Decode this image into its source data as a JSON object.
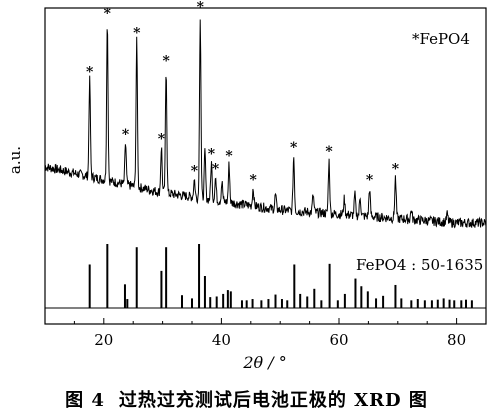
{
  "figure": {
    "caption_number": "图 4",
    "caption_text": "过热过充测试后电池正极的 XRD 图"
  },
  "chart_data": {
    "type": "line",
    "xlabel": "2θ / °",
    "ylabel": "a.u.",
    "xlim": [
      10,
      85
    ],
    "x_ticks": [
      20,
      40,
      60,
      80
    ],
    "legend_label": "*FePO4",
    "reference_label": "FePO4 : 50-1635",
    "marker_symbol": "*",
    "grid": false,
    "series": [
      {
        "name": "*FePO4",
        "baseline": [
          [
            10,
            0.33
          ],
          [
            15,
            0.3
          ],
          [
            20,
            0.27
          ],
          [
            25,
            0.24
          ],
          [
            30,
            0.21
          ],
          [
            35,
            0.19
          ],
          [
            40,
            0.17
          ],
          [
            45,
            0.15
          ],
          [
            50,
            0.13
          ],
          [
            55,
            0.12
          ],
          [
            60,
            0.11
          ],
          [
            65,
            0.1
          ],
          [
            70,
            0.09
          ],
          [
            75,
            0.08
          ],
          [
            80,
            0.07
          ],
          [
            85,
            0.07
          ]
        ],
        "peaks": [
          {
            "x": 17.6,
            "y": 0.73,
            "marked": true
          },
          {
            "x": 20.6,
            "y": 1.0,
            "marked": true
          },
          {
            "x": 23.7,
            "y": 0.44,
            "marked": true
          },
          {
            "x": 25.6,
            "y": 0.91,
            "marked": true
          },
          {
            "x": 29.8,
            "y": 0.42,
            "marked": true
          },
          {
            "x": 30.6,
            "y": 0.78,
            "marked": true
          },
          {
            "x": 35.4,
            "y": 0.27,
            "marked": true
          },
          {
            "x": 36.4,
            "y": 1.03,
            "marked": true
          },
          {
            "x": 37.2,
            "y": 0.4,
            "marked": false
          },
          {
            "x": 38.3,
            "y": 0.35,
            "marked": true
          },
          {
            "x": 39.0,
            "y": 0.28,
            "marked": true
          },
          {
            "x": 40.1,
            "y": 0.26,
            "marked": false
          },
          {
            "x": 41.3,
            "y": 0.34,
            "marked": true
          },
          {
            "x": 45.4,
            "y": 0.23,
            "marked": true
          },
          {
            "x": 49.2,
            "y": 0.2,
            "marked": false
          },
          {
            "x": 52.3,
            "y": 0.38,
            "marked": true
          },
          {
            "x": 55.6,
            "y": 0.2,
            "marked": false
          },
          {
            "x": 58.3,
            "y": 0.36,
            "marked": true
          },
          {
            "x": 60.9,
            "y": 0.18,
            "marked": false
          },
          {
            "x": 62.7,
            "y": 0.2,
            "marked": false
          },
          {
            "x": 63.6,
            "y": 0.19,
            "marked": false
          },
          {
            "x": 65.2,
            "y": 0.23,
            "marked": true
          },
          {
            "x": 69.6,
            "y": 0.28,
            "marked": true
          },
          {
            "x": 72.3,
            "y": 0.13,
            "marked": false
          },
          {
            "x": 78.4,
            "y": 0.11,
            "marked": false
          }
        ]
      }
    ],
    "reference_lines": [
      {
        "x": 17.6,
        "h": 0.68
      },
      {
        "x": 20.6,
        "h": 1.0
      },
      {
        "x": 23.6,
        "h": 0.37
      },
      {
        "x": 24.0,
        "h": 0.14
      },
      {
        "x": 25.6,
        "h": 0.95
      },
      {
        "x": 29.8,
        "h": 0.58
      },
      {
        "x": 30.6,
        "h": 0.95
      },
      {
        "x": 33.3,
        "h": 0.2
      },
      {
        "x": 35.0,
        "h": 0.15
      },
      {
        "x": 36.2,
        "h": 1.0
      },
      {
        "x": 37.2,
        "h": 0.5
      },
      {
        "x": 38.1,
        "h": 0.17
      },
      {
        "x": 39.2,
        "h": 0.18
      },
      {
        "x": 40.3,
        "h": 0.22
      },
      {
        "x": 41.1,
        "h": 0.28
      },
      {
        "x": 41.6,
        "h": 0.26
      },
      {
        "x": 43.5,
        "h": 0.12
      },
      {
        "x": 44.3,
        "h": 0.12
      },
      {
        "x": 45.3,
        "h": 0.14
      },
      {
        "x": 46.8,
        "h": 0.12
      },
      {
        "x": 48.0,
        "h": 0.14
      },
      {
        "x": 49.2,
        "h": 0.21
      },
      {
        "x": 50.3,
        "h": 0.14
      },
      {
        "x": 51.2,
        "h": 0.12
      },
      {
        "x": 52.4,
        "h": 0.68
      },
      {
        "x": 53.4,
        "h": 0.22
      },
      {
        "x": 54.6,
        "h": 0.18
      },
      {
        "x": 55.8,
        "h": 0.3
      },
      {
        "x": 57.0,
        "h": 0.12
      },
      {
        "x": 58.4,
        "h": 0.69
      },
      {
        "x": 59.8,
        "h": 0.12
      },
      {
        "x": 61.0,
        "h": 0.22
      },
      {
        "x": 62.8,
        "h": 0.46
      },
      {
        "x": 63.8,
        "h": 0.34
      },
      {
        "x": 64.9,
        "h": 0.26
      },
      {
        "x": 66.3,
        "h": 0.15
      },
      {
        "x": 67.5,
        "h": 0.19
      },
      {
        "x": 69.6,
        "h": 0.36
      },
      {
        "x": 70.6,
        "h": 0.15
      },
      {
        "x": 72.3,
        "h": 0.12
      },
      {
        "x": 73.4,
        "h": 0.14
      },
      {
        "x": 74.6,
        "h": 0.12
      },
      {
        "x": 75.8,
        "h": 0.12
      },
      {
        "x": 76.8,
        "h": 0.13
      },
      {
        "x": 77.8,
        "h": 0.15
      },
      {
        "x": 78.8,
        "h": 0.13
      },
      {
        "x": 79.6,
        "h": 0.12
      },
      {
        "x": 80.8,
        "h": 0.12
      },
      {
        "x": 81.6,
        "h": 0.13
      },
      {
        "x": 82.6,
        "h": 0.12
      }
    ]
  }
}
